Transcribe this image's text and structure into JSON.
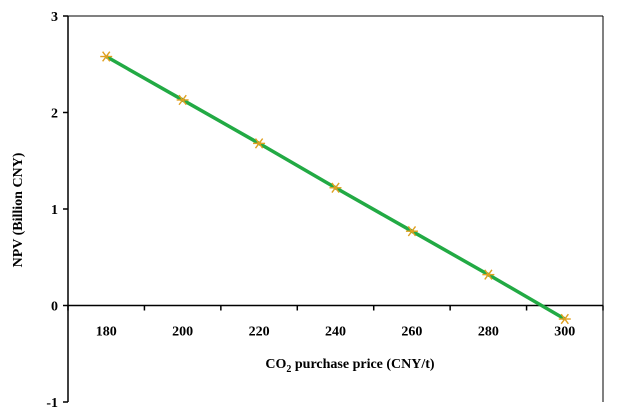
{
  "chart_data": {
    "type": "line",
    "x": [
      180,
      200,
      220,
      240,
      260,
      280,
      300
    ],
    "series": [
      {
        "values": [
          2.58,
          2.13,
          1.68,
          1.22,
          0.77,
          0.32,
          -0.14
        ]
      }
    ],
    "x_ticks": [
      "180",
      "200",
      "220",
      "240",
      "260",
      "280",
      "300"
    ],
    "y_ticks": [
      "3",
      "2",
      "1",
      "0",
      "-1"
    ],
    "xlim": [
      170,
      310
    ],
    "ylim": [
      -1,
      3
    ],
    "xlabel_main": "CO",
    "xlabel_sub": "2",
    "xlabel_rest": " purchase price (CNY/t)",
    "ylabel": "NPV (Billion CNY)",
    "grid": false,
    "colors": {
      "line": "#22aa44",
      "marker": "#e0a020",
      "axis": "#000000"
    }
  }
}
